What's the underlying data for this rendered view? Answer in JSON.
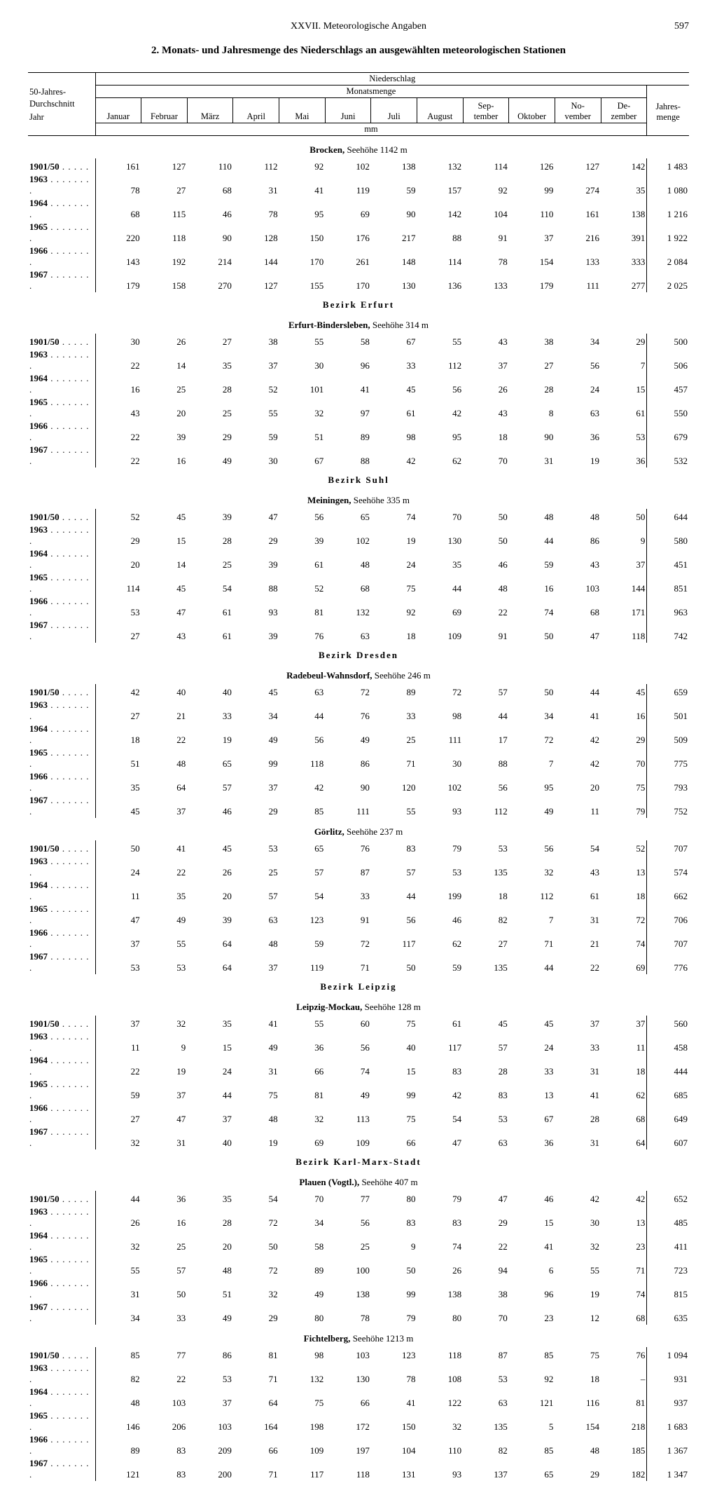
{
  "header": {
    "chapter": "XXVII. Meteorologische Angaben",
    "page": "597"
  },
  "title": "2. Monats- und Jahresmenge des Niederschlags an ausgewählten meteorologischen Stationen",
  "table": {
    "rowhead1": "50-Jahres-",
    "rowhead2": "Durchschnitt",
    "rowhead3": "Jahr",
    "colgroup_top": "Niederschlag",
    "colgroup_mid": "Monatsmenge",
    "unit": "mm",
    "sum_label1": "Jahres-",
    "sum_label2": "menge",
    "months": [
      "Januar",
      "Februar",
      "März",
      "April",
      "Mai",
      "Juni",
      "Juli",
      "August",
      "Sep-\ntember",
      "Oktober",
      "No-\nvember",
      "De-\nzember"
    ]
  },
  "stations": [
    {
      "region": null,
      "name_bold": "Brocken,",
      "name_rest": "Seehöhe 1142 m",
      "rows": [
        {
          "year": "1901/50",
          "dots": " . . . . .",
          "v": [
            161,
            127,
            110,
            112,
            92,
            102,
            138,
            132,
            114,
            126,
            127,
            142
          ],
          "sum": "1 483"
        },
        {
          "year": "1963",
          "dots": " . . . . . . . .",
          "v": [
            78,
            27,
            68,
            31,
            41,
            119,
            59,
            157,
            92,
            99,
            274,
            35
          ],
          "sum": "1 080"
        },
        {
          "year": "1964",
          "dots": " . . . . . . . .",
          "v": [
            68,
            115,
            46,
            78,
            95,
            69,
            90,
            142,
            104,
            110,
            161,
            138
          ],
          "sum": "1 216"
        },
        {
          "year": "1965",
          "dots": " . . . . . . . .",
          "v": [
            220,
            118,
            90,
            128,
            150,
            176,
            217,
            88,
            91,
            37,
            216,
            391
          ],
          "sum": "1 922"
        },
        {
          "year": "1966",
          "dots": " . . . . . . . .",
          "v": [
            143,
            192,
            214,
            144,
            170,
            261,
            148,
            114,
            78,
            154,
            133,
            333
          ],
          "sum": "2 084"
        },
        {
          "year": "1967",
          "dots": " . . . . . . . .",
          "v": [
            179,
            158,
            270,
            127,
            155,
            170,
            130,
            136,
            133,
            179,
            111,
            277
          ],
          "sum": "2 025"
        }
      ]
    },
    {
      "region": "Bezirk Erfurt",
      "name_bold": "Erfurt-Bindersleben,",
      "name_rest": "Seehöhe 314 m",
      "rows": [
        {
          "year": "1901/50",
          "dots": " . . . . .",
          "v": [
            30,
            26,
            27,
            38,
            55,
            58,
            67,
            55,
            43,
            38,
            34,
            29
          ],
          "sum": "500"
        },
        {
          "year": "1963",
          "dots": " . . . . . . . .",
          "v": [
            22,
            14,
            35,
            37,
            30,
            96,
            33,
            112,
            37,
            27,
            56,
            7
          ],
          "sum": "506"
        },
        {
          "year": "1964",
          "dots": " . . . . . . . .",
          "v": [
            16,
            25,
            28,
            52,
            101,
            41,
            45,
            56,
            26,
            28,
            24,
            15
          ],
          "sum": "457"
        },
        {
          "year": "1965",
          "dots": " . . . . . . . .",
          "v": [
            43,
            20,
            25,
            55,
            32,
            97,
            61,
            42,
            43,
            8,
            63,
            61
          ],
          "sum": "550"
        },
        {
          "year": "1966",
          "dots": " . . . . . . . .",
          "v": [
            22,
            39,
            29,
            59,
            51,
            89,
            98,
            95,
            18,
            90,
            36,
            53
          ],
          "sum": "679"
        },
        {
          "year": "1967",
          "dots": " . . . . . . . .",
          "v": [
            22,
            16,
            49,
            30,
            67,
            88,
            42,
            62,
            70,
            31,
            19,
            36
          ],
          "sum": "532"
        }
      ]
    },
    {
      "region": "Bezirk Suhl",
      "name_bold": "Meiningen,",
      "name_rest": "Seehöhe 335 m",
      "rows": [
        {
          "year": "1901/50",
          "dots": " . . . . .",
          "v": [
            52,
            45,
            39,
            47,
            56,
            65,
            74,
            70,
            50,
            48,
            48,
            50
          ],
          "sum": "644"
        },
        {
          "year": "1963",
          "dots": " . . . . . . . .",
          "v": [
            29,
            15,
            28,
            29,
            39,
            102,
            19,
            130,
            50,
            44,
            86,
            9
          ],
          "sum": "580"
        },
        {
          "year": "1964",
          "dots": " . . . . . . . .",
          "v": [
            20,
            14,
            25,
            39,
            61,
            48,
            24,
            35,
            46,
            59,
            43,
            37
          ],
          "sum": "451"
        },
        {
          "year": "1965",
          "dots": " . . . . . . . .",
          "v": [
            114,
            45,
            54,
            88,
            52,
            68,
            75,
            44,
            48,
            16,
            103,
            144
          ],
          "sum": "851"
        },
        {
          "year": "1966",
          "dots": " . . . . . . . .",
          "v": [
            53,
            47,
            61,
            93,
            81,
            132,
            92,
            69,
            22,
            74,
            68,
            171
          ],
          "sum": "963"
        },
        {
          "year": "1967",
          "dots": " . . . . . . . .",
          "v": [
            27,
            43,
            61,
            39,
            76,
            63,
            18,
            109,
            91,
            50,
            47,
            118
          ],
          "sum": "742"
        }
      ]
    },
    {
      "region": "Bezirk Dresden",
      "name_bold": "Radebeul-Wahnsdorf,",
      "name_rest": "Seehöhe 246 m",
      "rows": [
        {
          "year": "1901/50",
          "dots": " . . . . .",
          "v": [
            42,
            40,
            40,
            45,
            63,
            72,
            89,
            72,
            57,
            50,
            44,
            45
          ],
          "sum": "659"
        },
        {
          "year": "1963",
          "dots": " . . . . . . . .",
          "v": [
            27,
            21,
            33,
            34,
            44,
            76,
            33,
            98,
            44,
            34,
            41,
            16
          ],
          "sum": "501"
        },
        {
          "year": "1964",
          "dots": " . . . . . . . .",
          "v": [
            18,
            22,
            19,
            49,
            56,
            49,
            25,
            111,
            17,
            72,
            42,
            29
          ],
          "sum": "509"
        },
        {
          "year": "1965",
          "dots": " . . . . . . . .",
          "v": [
            51,
            48,
            65,
            99,
            118,
            86,
            71,
            30,
            88,
            7,
            42,
            70
          ],
          "sum": "775"
        },
        {
          "year": "1966",
          "dots": " . . . . . . . .",
          "v": [
            35,
            64,
            57,
            37,
            42,
            90,
            120,
            102,
            56,
            95,
            20,
            75
          ],
          "sum": "793"
        },
        {
          "year": "1967",
          "dots": " . . . . . . . .",
          "v": [
            45,
            37,
            46,
            29,
            85,
            111,
            55,
            93,
            112,
            49,
            11,
            79
          ],
          "sum": "752"
        }
      ]
    },
    {
      "region": null,
      "name_bold": "Görlitz,",
      "name_rest": "Seehöhe 237 m",
      "rows": [
        {
          "year": "1901/50",
          "dots": " . . . . .",
          "v": [
            50,
            41,
            45,
            53,
            65,
            76,
            83,
            79,
            53,
            56,
            54,
            52
          ],
          "sum": "707"
        },
        {
          "year": "1963",
          "dots": " . . . . . . . .",
          "v": [
            24,
            22,
            26,
            25,
            57,
            87,
            57,
            53,
            135,
            32,
            43,
            13
          ],
          "sum": "574"
        },
        {
          "year": "1964",
          "dots": " . . . . . . . .",
          "v": [
            11,
            35,
            20,
            57,
            54,
            33,
            44,
            199,
            18,
            112,
            61,
            18
          ],
          "sum": "662"
        },
        {
          "year": "1965",
          "dots": " . . . . . . . .",
          "v": [
            47,
            49,
            39,
            63,
            123,
            91,
            56,
            46,
            82,
            7,
            31,
            72
          ],
          "sum": "706"
        },
        {
          "year": "1966",
          "dots": " . . . . . . . .",
          "v": [
            37,
            55,
            64,
            48,
            59,
            72,
            117,
            62,
            27,
            71,
            21,
            74
          ],
          "sum": "707"
        },
        {
          "year": "1967",
          "dots": " . . . . . . . .",
          "v": [
            53,
            53,
            64,
            37,
            119,
            71,
            50,
            59,
            135,
            44,
            22,
            69
          ],
          "sum": "776"
        }
      ]
    },
    {
      "region": "Bezirk Leipzig",
      "name_bold": "Leipzig-Mockau,",
      "name_rest": "Seehöhe 128 m",
      "rows": [
        {
          "year": "1901/50",
          "dots": " . . . . .",
          "v": [
            37,
            32,
            35,
            41,
            55,
            60,
            75,
            61,
            45,
            45,
            37,
            37
          ],
          "sum": "560"
        },
        {
          "year": "1963",
          "dots": " . . . . . . . .",
          "v": [
            11,
            9,
            15,
            49,
            36,
            56,
            40,
            117,
            57,
            24,
            33,
            11
          ],
          "sum": "458"
        },
        {
          "year": "1964",
          "dots": " . . . . . . . .",
          "v": [
            22,
            19,
            24,
            31,
            66,
            74,
            15,
            83,
            28,
            33,
            31,
            18
          ],
          "sum": "444"
        },
        {
          "year": "1965",
          "dots": " . . . . . . . .",
          "v": [
            59,
            37,
            44,
            75,
            81,
            49,
            99,
            42,
            83,
            13,
            41,
            62
          ],
          "sum": "685"
        },
        {
          "year": "1966",
          "dots": " . . . . . . . .",
          "v": [
            27,
            47,
            37,
            48,
            32,
            113,
            75,
            54,
            53,
            67,
            28,
            68
          ],
          "sum": "649"
        },
        {
          "year": "1967",
          "dots": " . . . . . . . .",
          "v": [
            32,
            31,
            40,
            19,
            69,
            109,
            66,
            47,
            63,
            36,
            31,
            64
          ],
          "sum": "607"
        }
      ]
    },
    {
      "region": "Bezirk Karl-Marx-Stadt",
      "name_bold": "Plauen (Vogtl.),",
      "name_rest": "Seehöhe 407 m",
      "rows": [
        {
          "year": "1901/50",
          "dots": " . . . . .",
          "v": [
            44,
            36,
            35,
            54,
            70,
            77,
            80,
            79,
            47,
            46,
            42,
            42
          ],
          "sum": "652"
        },
        {
          "year": "1963",
          "dots": " . . . . . . . .",
          "v": [
            26,
            16,
            28,
            72,
            34,
            56,
            83,
            83,
            29,
            15,
            30,
            13
          ],
          "sum": "485"
        },
        {
          "year": "1964",
          "dots": " . . . . . . . .",
          "v": [
            32,
            25,
            20,
            50,
            58,
            25,
            9,
            74,
            22,
            41,
            32,
            23
          ],
          "sum": "411"
        },
        {
          "year": "1965",
          "dots": " . . . . . . . .",
          "v": [
            55,
            57,
            48,
            72,
            89,
            100,
            50,
            26,
            94,
            6,
            55,
            71
          ],
          "sum": "723"
        },
        {
          "year": "1966",
          "dots": " . . . . . . . .",
          "v": [
            31,
            50,
            51,
            32,
            49,
            138,
            99,
            138,
            38,
            96,
            19,
            74
          ],
          "sum": "815"
        },
        {
          "year": "1967",
          "dots": " . . . . . . . .",
          "v": [
            34,
            33,
            49,
            29,
            80,
            78,
            79,
            80,
            70,
            23,
            12,
            68
          ],
          "sum": "635"
        }
      ]
    },
    {
      "region": null,
      "name_bold": "Fichtelberg,",
      "name_rest": "Seehöhe 1213 m",
      "rows": [
        {
          "year": "1901/50",
          "dots": " . . . . .",
          "v": [
            85,
            77,
            86,
            81,
            98,
            103,
            123,
            118,
            87,
            85,
            75,
            76
          ],
          "sum": "1 094"
        },
        {
          "year": "1963",
          "dots": " . . . . . . . .",
          "v": [
            82,
            22,
            53,
            71,
            132,
            130,
            78,
            108,
            53,
            92,
            18,
            "–"
          ],
          "sum": "931"
        },
        {
          "year": "1964",
          "dots": " . . . . . . . .",
          "v": [
            48,
            103,
            37,
            64,
            75,
            66,
            41,
            122,
            63,
            121,
            116,
            81
          ],
          "sum": "937"
        },
        {
          "year": "1965",
          "dots": " . . . . . . . .",
          "v": [
            146,
            206,
            103,
            164,
            198,
            172,
            150,
            32,
            135,
            5,
            154,
            218
          ],
          "sum": "1 683"
        },
        {
          "year": "1966",
          "dots": " . . . . . . . .",
          "v": [
            89,
            83,
            209,
            66,
            109,
            197,
            104,
            110,
            82,
            85,
            48,
            185
          ],
          "sum": "1 367"
        },
        {
          "year": "1967",
          "dots": " . . . . . . . .",
          "v": [
            121,
            83,
            200,
            71,
            117,
            118,
            131,
            93,
            137,
            65,
            29,
            182
          ],
          "sum": "1 347"
        }
      ]
    }
  ]
}
